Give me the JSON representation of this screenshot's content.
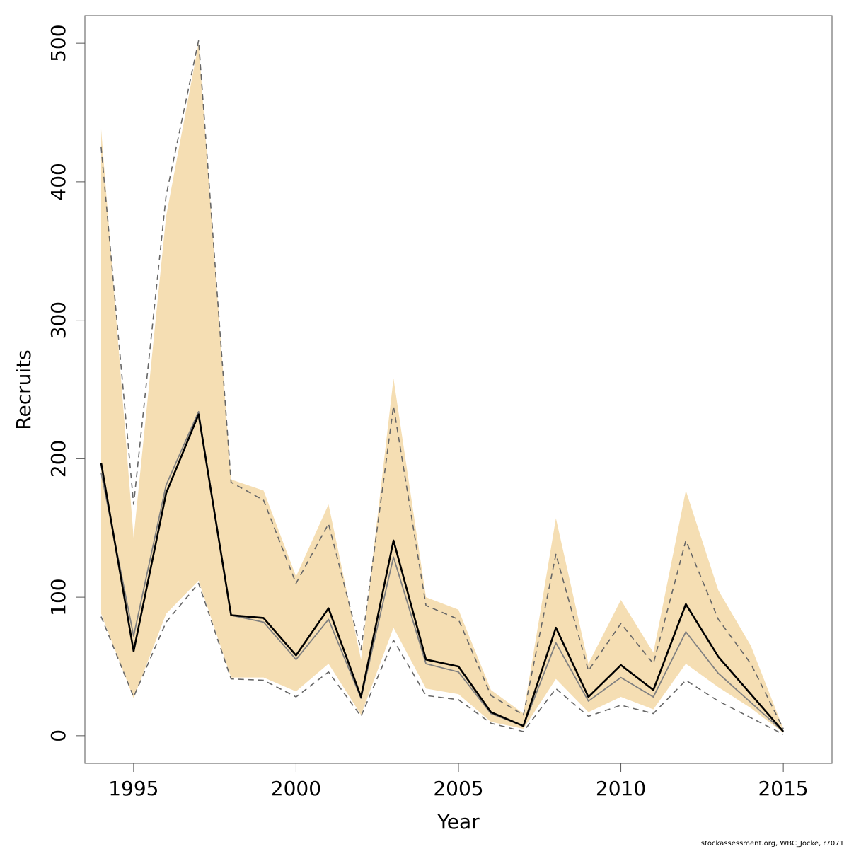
{
  "chart_data": {
    "type": "line",
    "title": "",
    "xlabel": "Year",
    "ylabel": "Recruits",
    "xlim": [
      1993.5,
      2016.5
    ],
    "ylim": [
      -20,
      520
    ],
    "xticks": [
      1995,
      2000,
      2005,
      2010,
      2015
    ],
    "yticks": [
      0,
      100,
      200,
      300,
      400,
      500
    ],
    "grid": false,
    "legend": "none",
    "colors": {
      "band": "#f5deb3",
      "median": "#000000",
      "secondary": "#808080",
      "dashed": "#666666",
      "frame": "#555555"
    },
    "x": [
      1994,
      1995,
      1996,
      1997,
      1998,
      1999,
      2000,
      2001,
      2002,
      2003,
      2004,
      2005,
      2006,
      2007,
      2008,
      2009,
      2010,
      2011,
      2012,
      2013,
      2014,
      2015
    ],
    "series": [
      {
        "key": "band_upper",
        "values": [
          438,
          143,
          375,
          500,
          185,
          177,
          115,
          167,
          55,
          258,
          100,
          91,
          33,
          16,
          157,
          52,
          98,
          60,
          177,
          105,
          65,
          5
        ]
      },
      {
        "key": "band_lower",
        "values": [
          88,
          27,
          88,
          112,
          42,
          42,
          32,
          52,
          15,
          78,
          34,
          30,
          10,
          5,
          41,
          17,
          28,
          19,
          52,
          35,
          20,
          2
        ]
      },
      {
        "key": "dashed_upper",
        "values": [
          425,
          167,
          390,
          502,
          183,
          170,
          110,
          153,
          62,
          238,
          94,
          84,
          29,
          15,
          131,
          47,
          81,
          52,
          141,
          84,
          52,
          5
        ]
      },
      {
        "key": "dashed_lower",
        "values": [
          86,
          28,
          82,
          110,
          41,
          40,
          28,
          46,
          14,
          69,
          29,
          26,
          9,
          3,
          34,
          14,
          22,
          16,
          40,
          25,
          13,
          1
        ]
      },
      {
        "key": "secondary",
        "values": [
          190,
          72,
          181,
          234,
          87,
          82,
          55,
          84,
          27,
          129,
          52,
          46,
          16,
          7,
          67,
          25,
          42,
          28,
          75,
          45,
          24,
          3
        ]
      },
      {
        "key": "median",
        "values": [
          197,
          61,
          175,
          232,
          87,
          85,
          58,
          92,
          28,
          141,
          55,
          50,
          17,
          7,
          78,
          28,
          51,
          33,
          95,
          57,
          30,
          3
        ]
      }
    ]
  },
  "footer": {
    "credit": "stockassessment.org, WBC_Jocke, r7071"
  }
}
